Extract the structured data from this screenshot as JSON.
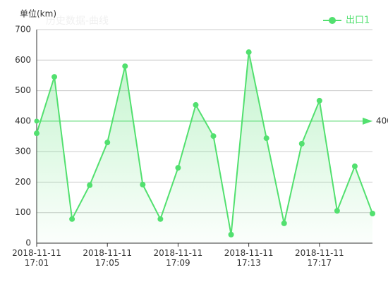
{
  "chart_data": {
    "type": "line",
    "title": "历史数据-曲线",
    "y_label": "单位(km)",
    "categories": [
      "2018-11-11\n17:01",
      null,
      null,
      null,
      "2018-11-11\n17:05",
      null,
      null,
      null,
      "2018-11-11\n17:09",
      null,
      null,
      null,
      "2018-11-11\n17:13",
      null,
      null,
      null,
      "2018-11-11\n17:17",
      null,
      null,
      null
    ],
    "series": [
      {
        "name": "出口1",
        "color": "#52e06f",
        "values": [
          360,
          545,
          79,
          190,
          330,
          580,
          192,
          79,
          247,
          453,
          351,
          28,
          626,
          344,
          65,
          326,
          467,
          106,
          252,
          97
        ]
      }
    ],
    "mark_line": 400,
    "ylim": [
      0,
      700
    ],
    "yticks": [
      0,
      100,
      200,
      300,
      400,
      500,
      600,
      700
    ],
    "grid": true,
    "legend": "top-right"
  }
}
